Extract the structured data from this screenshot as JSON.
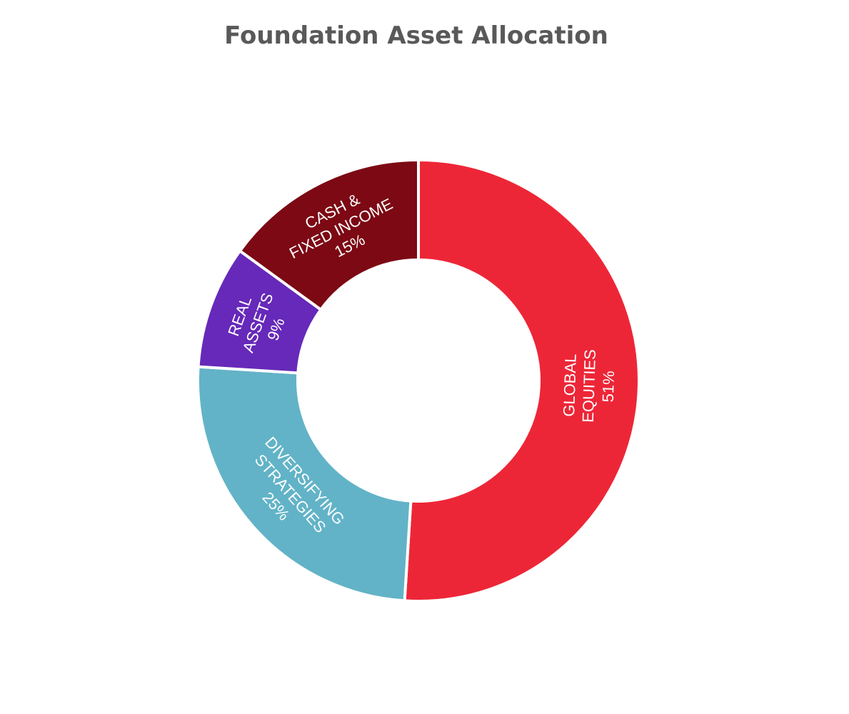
{
  "chart_data": {
    "type": "pie",
    "variant": "donut",
    "title": "Foundation Asset Allocation",
    "legend": "none",
    "slices": [
      {
        "label_lines": [
          "GLOBAL",
          "EQUITIES"
        ],
        "value": 51,
        "value_label": "51%",
        "color": "#ED2637"
      },
      {
        "label_lines": [
          "DIVERSIFYING",
          "STRATEGIES"
        ],
        "value": 25,
        "value_label": "25%",
        "color": "#62B3C7"
      },
      {
        "label_lines": [
          "REAL",
          "ASSETS"
        ],
        "value": 9,
        "value_label": "9%",
        "color": "#6629B9"
      },
      {
        "label_lines": [
          "CASH &",
          "FIXED INCOME"
        ],
        "value": 15,
        "value_label": "15%",
        "color": "#7C0914"
      }
    ]
  }
}
